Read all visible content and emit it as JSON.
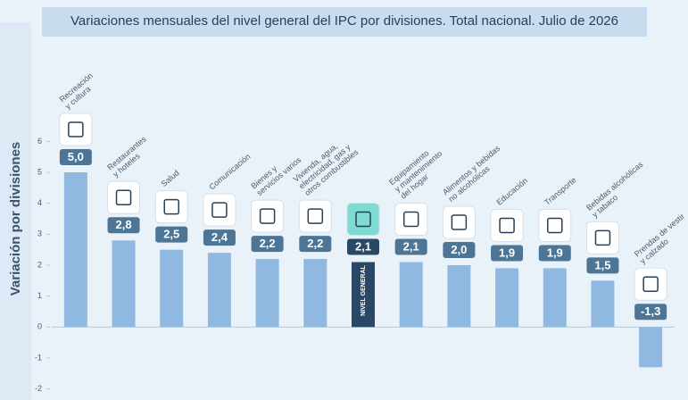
{
  "chart_data": {
    "type": "bar",
    "title": "Variaciones mensuales del nivel general del IPC por divisiones. Total nacional. Julio de 2026",
    "y_label": "Variación por divisiones",
    "categories": [
      "Recreación\ny cultura",
      "Restaurantes\ny hoteles",
      "Salud",
      "Comunicación",
      "Bienes y\nservicios varios",
      "Vivienda, agua,\nelectricidad, gas y\notros combustibles",
      "NIVEL GENERAL",
      "Equipamiento\ny mantenimiento\ndel hogar",
      "Alimentos y bebidas\nno alcohólicas",
      "Educación",
      "Transporte",
      "Bebidas alcohólicas\ny tabaco",
      "Prendas de vestir\ny calzado"
    ],
    "values": [
      5.0,
      2.8,
      2.5,
      2.4,
      2.2,
      2.2,
      2.1,
      2.1,
      2.0,
      1.9,
      1.9,
      1.5,
      -1.3
    ],
    "value_labels": [
      "5,0",
      "2,8",
      "2,5",
      "2,4",
      "2,2",
      "2,2",
      "2,1",
      "2,1",
      "2,0",
      "1,9",
      "1,9",
      "1,5",
      "-1,3"
    ],
    "color": "#8fb9e1",
    "highlight_color": "#2a4766",
    "highlight_index": 6,
    "ylim": [
      -2.3,
      6.3
    ],
    "yticks": [
      6,
      5,
      4,
      3,
      2,
      1,
      0,
      -1,
      -2
    ],
    "grid": false
  }
}
